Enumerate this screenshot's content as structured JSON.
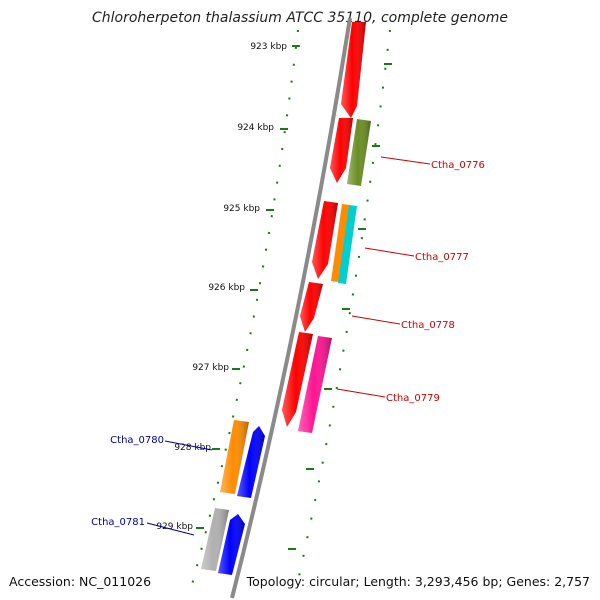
{
  "title": "Chloroherpeton thalassium ATCC 35110, complete genome",
  "footer": {
    "accession": "Accession: NC_011026",
    "topology": "Topology: circular; Length: 3,293,456 bp; Genes: 2,757"
  },
  "colors": {
    "backbone": "#8a8a8a",
    "tick": "#1a7a1a",
    "label_red": "#cc0000",
    "label_blue": "#000099"
  },
  "kbp_ticks": [
    "923 kbp",
    "924 kbp",
    "925 kbp",
    "926 kbp",
    "927 kbp",
    "928 kbp",
    "929 kbp"
  ],
  "gene_labels": [
    {
      "text": "Ctha_0776",
      "color": "#cc0000"
    },
    {
      "text": "Ctha_0777",
      "color": "#cc0000"
    },
    {
      "text": "Ctha_0778",
      "color": "#cc0000"
    },
    {
      "text": "Ctha_0779",
      "color": "#cc0000"
    },
    {
      "text": "Ctha_0780",
      "color": "#000099"
    },
    {
      "text": "Ctha_0781",
      "color": "#000099"
    }
  ],
  "genes": [
    {
      "strand": "outer",
      "color": "#ff0000"
    },
    {
      "strand": "outer",
      "color": "#ff0000"
    },
    {
      "strand": "outer",
      "color": "#6b8e23"
    },
    {
      "strand": "outer",
      "color": "#ff0000"
    },
    {
      "strand": "outer",
      "color": "#ff8c00"
    },
    {
      "strand": "outer",
      "color": "#00ced1"
    },
    {
      "strand": "outer",
      "color": "#ff0000"
    },
    {
      "strand": "outer",
      "color": "#ff0000"
    },
    {
      "strand": "outer",
      "color": "#ff1493"
    },
    {
      "strand": "inner",
      "color": "#ff8c00"
    },
    {
      "strand": "inner",
      "color": "#0000ff"
    },
    {
      "strand": "inner",
      "color": "#b0b0b0"
    },
    {
      "strand": "inner",
      "color": "#0000ff"
    }
  ]
}
